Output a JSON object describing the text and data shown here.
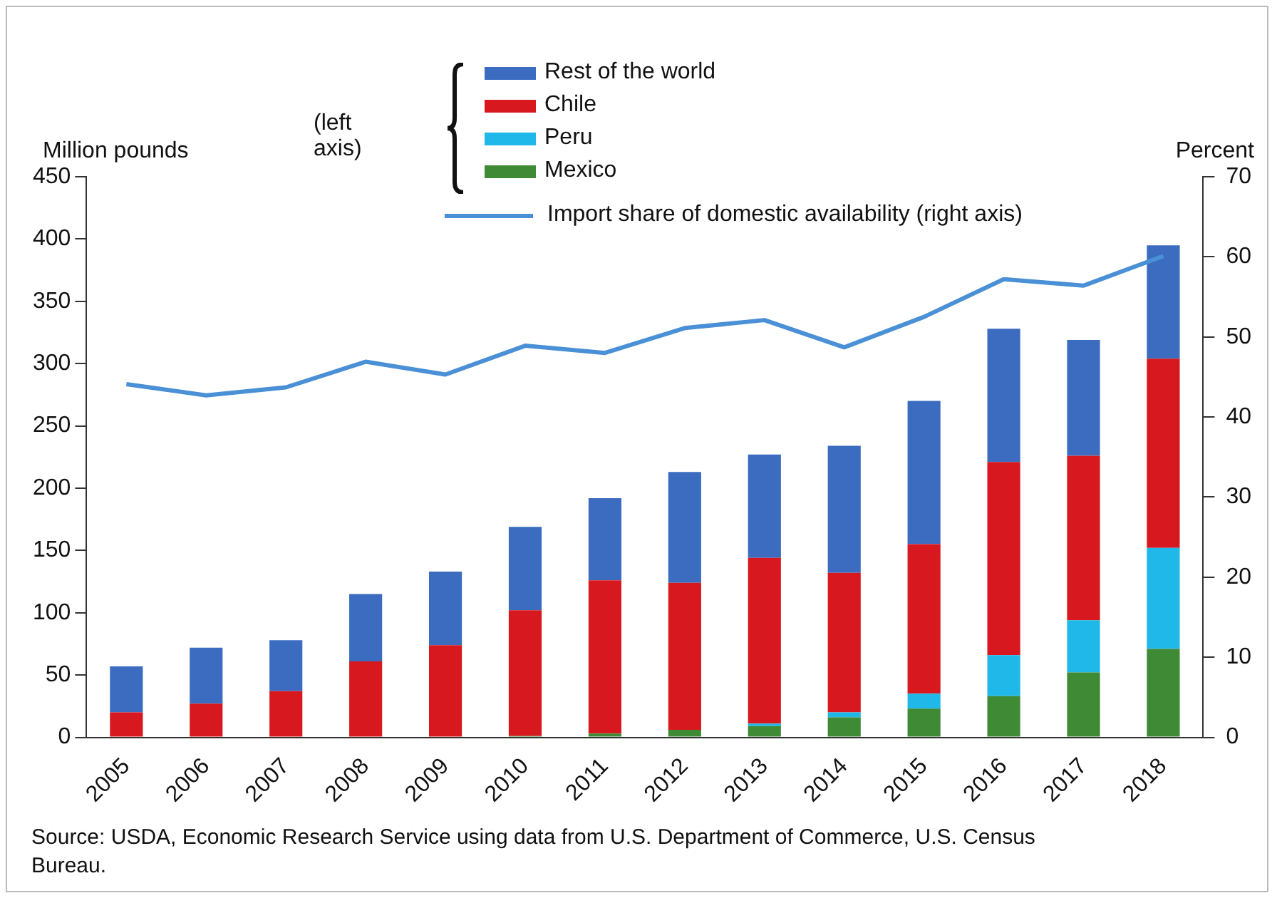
{
  "chart_data": {
    "type": "bar",
    "stacked": true,
    "ylabel": "Million pounds",
    "y2label": "Percent",
    "categories": [
      "2005",
      "2006",
      "2007",
      "2008",
      "2009",
      "2010",
      "2011",
      "2012",
      "2013",
      "2014",
      "2015",
      "2016",
      "2017",
      "2018"
    ],
    "series": [
      {
        "name": "Mexico",
        "color": "#3f8a35",
        "values": [
          0,
          0,
          0,
          0,
          0,
          1,
          3,
          6,
          9,
          16,
          23,
          33,
          52,
          71
        ]
      },
      {
        "name": "Peru",
        "color": "#1fb8e8",
        "values": [
          0,
          0,
          0,
          0,
          0,
          0,
          0,
          0,
          2,
          4,
          12,
          33,
          42,
          81
        ]
      },
      {
        "name": "Chile",
        "color": "#d7191f",
        "values": [
          20,
          27,
          37,
          61,
          74,
          101,
          123,
          118,
          133,
          112,
          120,
          155,
          132,
          152
        ]
      },
      {
        "name": "Rest of the world",
        "color": "#3b6cc0",
        "values": [
          37,
          45,
          41,
          54,
          59,
          67,
          66,
          89,
          83,
          102,
          115,
          107,
          93,
          91
        ]
      },
      {
        "name": "Import share of domestic availability (right axis)",
        "type": "line",
        "axis": "y2",
        "color": "#4a90d6",
        "values": [
          44.1,
          42.7,
          43.7,
          46.9,
          45.3,
          48.9,
          48.0,
          51.1,
          52.1,
          48.7,
          52.5,
          57.2,
          56.4,
          60.1
        ]
      }
    ],
    "ylim": [
      0,
      450
    ],
    "yticks": [
      0,
      50,
      100,
      150,
      200,
      250,
      300,
      350,
      400,
      450
    ],
    "y2lim": [
      0,
      70
    ],
    "y2ticks": [
      0,
      10,
      20,
      30,
      40,
      50,
      60,
      70
    ],
    "grid": false,
    "legend": "top",
    "marker": "none",
    "annotations": [
      "(left axis)",
      "Source: USDA, Economic Research Service using data from U.S. Department of Commerce, U.S. Census Bureau."
    ]
  }
}
